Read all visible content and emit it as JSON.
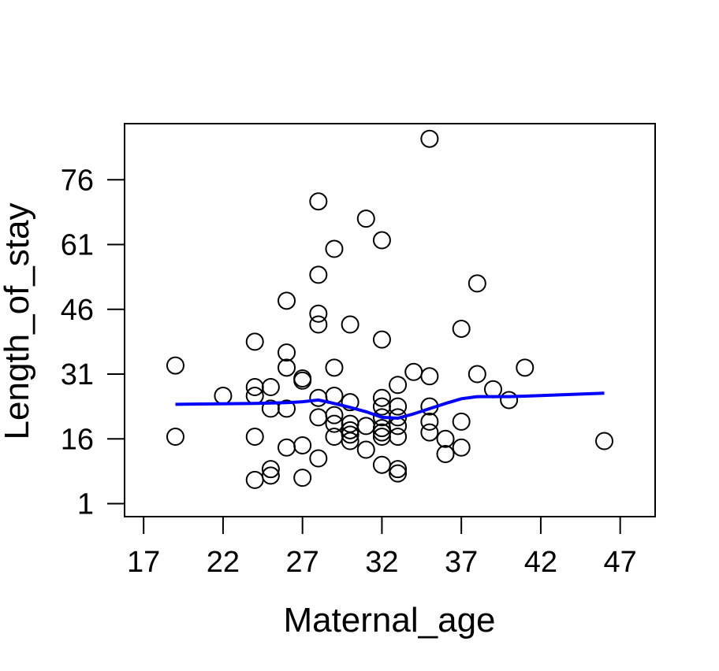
{
  "chart_data": {
    "type": "scatter",
    "title": "",
    "xlabel": "Maternal_age",
    "ylabel": "Length_of_stay",
    "xlim": [
      15.8,
      49.2
    ],
    "ylim": [
      -2,
      89
    ],
    "x_ticks": [
      17,
      22,
      27,
      32,
      37,
      42,
      47
    ],
    "x_tick_labels": [
      "17",
      "22",
      "27",
      "32",
      "37",
      "42",
      "47"
    ],
    "y_ticks": [
      1,
      16,
      31,
      46,
      61,
      76
    ],
    "y_tick_labels": [
      "1",
      "16",
      "31",
      "46",
      "61",
      "76"
    ],
    "grid": false,
    "legend": "none",
    "colors": {
      "points": "#000000",
      "smooth_line": "#0000ff",
      "frame": "#000000"
    },
    "points": [
      {
        "x": 19,
        "y": 33
      },
      {
        "x": 19,
        "y": 16.5
      },
      {
        "x": 22,
        "y": 26
      },
      {
        "x": 24,
        "y": 38.5
      },
      {
        "x": 24,
        "y": 28
      },
      {
        "x": 24,
        "y": 26
      },
      {
        "x": 24,
        "y": 16.5
      },
      {
        "x": 24,
        "y": 6.5
      },
      {
        "x": 25,
        "y": 28
      },
      {
        "x": 25,
        "y": 23
      },
      {
        "x": 25,
        "y": 9
      },
      {
        "x": 25,
        "y": 7.5
      },
      {
        "x": 26,
        "y": 48
      },
      {
        "x": 26,
        "y": 36
      },
      {
        "x": 26,
        "y": 32.5
      },
      {
        "x": 26,
        "y": 23
      },
      {
        "x": 26,
        "y": 14
      },
      {
        "x": 27,
        "y": 30
      },
      {
        "x": 27,
        "y": 29.5
      },
      {
        "x": 27,
        "y": 14.5
      },
      {
        "x": 27,
        "y": 7
      },
      {
        "x": 28,
        "y": 71
      },
      {
        "x": 28,
        "y": 54
      },
      {
        "x": 28,
        "y": 45
      },
      {
        "x": 28,
        "y": 42.5
      },
      {
        "x": 28,
        "y": 25.5
      },
      {
        "x": 28,
        "y": 21
      },
      {
        "x": 28,
        "y": 11.5
      },
      {
        "x": 29,
        "y": 60
      },
      {
        "x": 29,
        "y": 32.5
      },
      {
        "x": 29,
        "y": 26
      },
      {
        "x": 29,
        "y": 21.5
      },
      {
        "x": 29,
        "y": 19.5
      },
      {
        "x": 29,
        "y": 16.5
      },
      {
        "x": 30,
        "y": 42.5
      },
      {
        "x": 30,
        "y": 24.5
      },
      {
        "x": 30,
        "y": 19.5
      },
      {
        "x": 30,
        "y": 18
      },
      {
        "x": 30,
        "y": 17
      },
      {
        "x": 30,
        "y": 15.5
      },
      {
        "x": 31,
        "y": 67
      },
      {
        "x": 31,
        "y": 19
      },
      {
        "x": 31,
        "y": 13.5
      },
      {
        "x": 32,
        "y": 62
      },
      {
        "x": 32,
        "y": 39
      },
      {
        "x": 32,
        "y": 25.5
      },
      {
        "x": 32,
        "y": 23.5
      },
      {
        "x": 32,
        "y": 21
      },
      {
        "x": 32,
        "y": 18.5
      },
      {
        "x": 32,
        "y": 17.5
      },
      {
        "x": 32,
        "y": 16.5
      },
      {
        "x": 32,
        "y": 10
      },
      {
        "x": 33,
        "y": 28.5
      },
      {
        "x": 33,
        "y": 23.5
      },
      {
        "x": 33,
        "y": 21
      },
      {
        "x": 33,
        "y": 19
      },
      {
        "x": 33,
        "y": 16.5
      },
      {
        "x": 33,
        "y": 9
      },
      {
        "x": 33,
        "y": 8
      },
      {
        "x": 34,
        "y": 31.5
      },
      {
        "x": 35,
        "y": 85.5
      },
      {
        "x": 35,
        "y": 30.5
      },
      {
        "x": 35,
        "y": 23.5
      },
      {
        "x": 35,
        "y": 20
      },
      {
        "x": 35,
        "y": 17.5
      },
      {
        "x": 36,
        "y": 16
      },
      {
        "x": 36,
        "y": 12.5
      },
      {
        "x": 37,
        "y": 41.5
      },
      {
        "x": 37,
        "y": 20
      },
      {
        "x": 37,
        "y": 14
      },
      {
        "x": 38,
        "y": 52
      },
      {
        "x": 38,
        "y": 31
      },
      {
        "x": 39,
        "y": 27.5
      },
      {
        "x": 40,
        "y": 25
      },
      {
        "x": 41,
        "y": 32.5
      },
      {
        "x": 46,
        "y": 15.5
      }
    ],
    "smooth_line": {
      "x": [
        19,
        24,
        25,
        26,
        27,
        28,
        29,
        30,
        31,
        32,
        33,
        34,
        35,
        36,
        37,
        38,
        39,
        40,
        41,
        46
      ],
      "y": [
        24,
        24.2,
        24.3,
        24.4,
        24.6,
        25,
        24.2,
        23.3,
        22.3,
        21,
        20.8,
        21.8,
        23,
        24.2,
        25.3,
        25.8,
        25.8,
        25.8,
        25.9,
        26.6
      ]
    }
  }
}
